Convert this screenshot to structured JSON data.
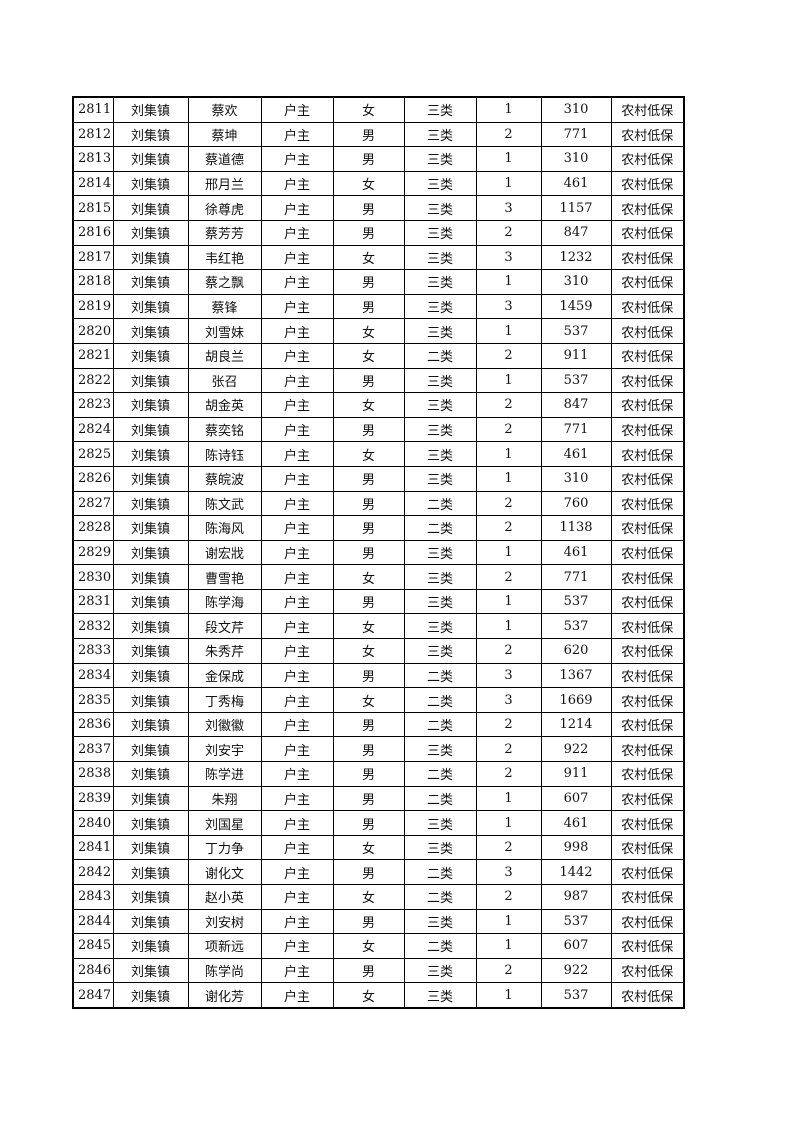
{
  "table": {
    "rows": [
      [
        "2811",
        "刘集镇",
        "蔡欢",
        "户主",
        "女",
        "三类",
        "1",
        "310",
        "农村低保"
      ],
      [
        "2812",
        "刘集镇",
        "蔡坤",
        "户主",
        "男",
        "三类",
        "2",
        "771",
        "农村低保"
      ],
      [
        "2813",
        "刘集镇",
        "蔡道德",
        "户主",
        "男",
        "三类",
        "1",
        "310",
        "农村低保"
      ],
      [
        "2814",
        "刘集镇",
        "邢月兰",
        "户主",
        "女",
        "三类",
        "1",
        "461",
        "农村低保"
      ],
      [
        "2815",
        "刘集镇",
        "徐尊虎",
        "户主",
        "男",
        "三类",
        "3",
        "1157",
        "农村低保"
      ],
      [
        "2816",
        "刘集镇",
        "蔡芳芳",
        "户主",
        "男",
        "三类",
        "2",
        "847",
        "农村低保"
      ],
      [
        "2817",
        "刘集镇",
        "韦红艳",
        "户主",
        "女",
        "三类",
        "3",
        "1232",
        "农村低保"
      ],
      [
        "2818",
        "刘集镇",
        "蔡之飘",
        "户主",
        "男",
        "三类",
        "1",
        "310",
        "农村低保"
      ],
      [
        "2819",
        "刘集镇",
        "蔡锋",
        "户主",
        "男",
        "三类",
        "3",
        "1459",
        "农村低保"
      ],
      [
        "2820",
        "刘集镇",
        "刘雪妹",
        "户主",
        "女",
        "三类",
        "1",
        "537",
        "农村低保"
      ],
      [
        "2821",
        "刘集镇",
        "胡良兰",
        "户主",
        "女",
        "二类",
        "2",
        "911",
        "农村低保"
      ],
      [
        "2822",
        "刘集镇",
        "张召",
        "户主",
        "男",
        "三类",
        "1",
        "537",
        "农村低保"
      ],
      [
        "2823",
        "刘集镇",
        "胡金英",
        "户主",
        "女",
        "三类",
        "2",
        "847",
        "农村低保"
      ],
      [
        "2824",
        "刘集镇",
        "蔡奕铭",
        "户主",
        "男",
        "三类",
        "2",
        "771",
        "农村低保"
      ],
      [
        "2825",
        "刘集镇",
        "陈诗钰",
        "户主",
        "女",
        "三类",
        "1",
        "461",
        "农村低保"
      ],
      [
        "2826",
        "刘集镇",
        "蔡皖波",
        "户主",
        "男",
        "三类",
        "1",
        "310",
        "农村低保"
      ],
      [
        "2827",
        "刘集镇",
        "陈文武",
        "户主",
        "男",
        "二类",
        "2",
        "760",
        "农村低保"
      ],
      [
        "2828",
        "刘集镇",
        "陈海风",
        "户主",
        "男",
        "二类",
        "2",
        "1138",
        "农村低保"
      ],
      [
        "2829",
        "刘集镇",
        "谢宏戕",
        "户主",
        "男",
        "三类",
        "1",
        "461",
        "农村低保"
      ],
      [
        "2830",
        "刘集镇",
        "曹雪艳",
        "户主",
        "女",
        "三类",
        "2",
        "771",
        "农村低保"
      ],
      [
        "2831",
        "刘集镇",
        "陈学海",
        "户主",
        "男",
        "三类",
        "1",
        "537",
        "农村低保"
      ],
      [
        "2832",
        "刘集镇",
        "段文芹",
        "户主",
        "女",
        "三类",
        "1",
        "537",
        "农村低保"
      ],
      [
        "2833",
        "刘集镇",
        "朱秀芹",
        "户主",
        "女",
        "三类",
        "2",
        "620",
        "农村低保"
      ],
      [
        "2834",
        "刘集镇",
        "金保成",
        "户主",
        "男",
        "二类",
        "3",
        "1367",
        "农村低保"
      ],
      [
        "2835",
        "刘集镇",
        "丁秀梅",
        "户主",
        "女",
        "二类",
        "3",
        "1669",
        "农村低保"
      ],
      [
        "2836",
        "刘集镇",
        "刘徽徽",
        "户主",
        "男",
        "二类",
        "2",
        "1214",
        "农村低保"
      ],
      [
        "2837",
        "刘集镇",
        "刘安宇",
        "户主",
        "男",
        "三类",
        "2",
        "922",
        "农村低保"
      ],
      [
        "2838",
        "刘集镇",
        "陈学进",
        "户主",
        "男",
        "二类",
        "2",
        "911",
        "农村低保"
      ],
      [
        "2839",
        "刘集镇",
        "朱翔",
        "户主",
        "男",
        "二类",
        "1",
        "607",
        "农村低保"
      ],
      [
        "2840",
        "刘集镇",
        "刘国星",
        "户主",
        "男",
        "三类",
        "1",
        "461",
        "农村低保"
      ],
      [
        "2841",
        "刘集镇",
        "丁力争",
        "户主",
        "女",
        "三类",
        "2",
        "998",
        "农村低保"
      ],
      [
        "2842",
        "刘集镇",
        "谢化文",
        "户主",
        "男",
        "二类",
        "3",
        "1442",
        "农村低保"
      ],
      [
        "2843",
        "刘集镇",
        "赵小英",
        "户主",
        "女",
        "二类",
        "2",
        "987",
        "农村低保"
      ],
      [
        "2844",
        "刘集镇",
        "刘安树",
        "户主",
        "男",
        "三类",
        "1",
        "537",
        "农村低保"
      ],
      [
        "2845",
        "刘集镇",
        "项新远",
        "户主",
        "女",
        "二类",
        "1",
        "607",
        "农村低保"
      ],
      [
        "2846",
        "刘集镇",
        "陈学尚",
        "户主",
        "男",
        "三类",
        "2",
        "922",
        "农村低保"
      ],
      [
        "2847",
        "刘集镇",
        "谢化芳",
        "户主",
        "女",
        "三类",
        "1",
        "537",
        "农村低保"
      ]
    ]
  }
}
